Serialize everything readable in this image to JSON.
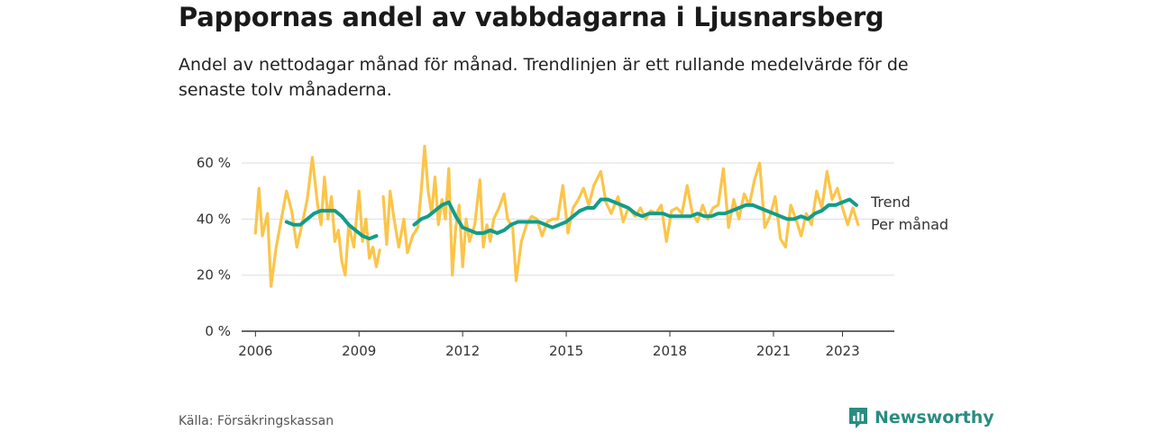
{
  "header": {
    "title": "Pappornas andel av vabbdagarna i Ljusnarsberg",
    "subtitle": "Andel av nettodagar månad för månad. Trendlinjen är ett rullande medelvärde för de senaste tolv månaderna."
  },
  "footer": {
    "source": "Källa: Försäkringskassan",
    "brand": "Newsworthy",
    "brand_icon": "bar-chart-logo-icon"
  },
  "colors": {
    "monthly": "#fbc54a",
    "trend": "#129c8a",
    "grid": "#dddddd",
    "brand": "#2a8c82"
  },
  "chart_data": {
    "type": "line",
    "y_ticks": [
      "0 %",
      "20 %",
      "40 %",
      "60 %"
    ],
    "x_ticks": [
      "2006",
      "2009",
      "2012",
      "2015",
      "2018",
      "2021",
      "2023"
    ],
    "ylim": [
      0,
      70
    ],
    "xlim": [
      2005.6,
      2024.5
    ],
    "grid": true,
    "legend": "right end of lines",
    "series": [
      {
        "name": "Trend",
        "points": [
          [
            2006.9,
            39
          ],
          [
            2007.1,
            38
          ],
          [
            2007.3,
            38
          ],
          [
            2007.5,
            40
          ],
          [
            2007.7,
            42
          ],
          [
            2007.9,
            43
          ],
          [
            2008.1,
            43
          ],
          [
            2008.3,
            43
          ],
          [
            2008.5,
            41
          ],
          [
            2008.7,
            38
          ],
          [
            2008.9,
            36
          ],
          [
            2009.1,
            34
          ],
          [
            2009.3,
            33
          ],
          [
            2009.5,
            34
          ],
          null,
          [
            2010.6,
            38
          ],
          [
            2010.8,
            40
          ],
          [
            2011.0,
            41
          ],
          [
            2011.2,
            43
          ],
          [
            2011.4,
            45
          ],
          [
            2011.6,
            46
          ],
          [
            2011.8,
            41
          ],
          [
            2012.0,
            37
          ],
          [
            2012.2,
            36
          ],
          [
            2012.4,
            35
          ],
          [
            2012.6,
            35
          ],
          [
            2012.8,
            36
          ],
          [
            2013.0,
            35
          ],
          [
            2013.2,
            36
          ],
          [
            2013.4,
            38
          ],
          [
            2013.6,
            39
          ],
          [
            2013.8,
            39
          ],
          [
            2014.0,
            39
          ],
          [
            2014.2,
            39
          ],
          [
            2014.4,
            38
          ],
          [
            2014.6,
            37
          ],
          [
            2014.8,
            38
          ],
          [
            2015.0,
            39
          ],
          [
            2015.2,
            41
          ],
          [
            2015.4,
            43
          ],
          [
            2015.6,
            44
          ],
          [
            2015.8,
            44
          ],
          [
            2016.0,
            47
          ],
          [
            2016.2,
            47
          ],
          [
            2016.4,
            46
          ],
          [
            2016.6,
            45
          ],
          [
            2016.8,
            44
          ],
          [
            2017.0,
            42
          ],
          [
            2017.2,
            41
          ],
          [
            2017.4,
            42
          ],
          [
            2017.6,
            42
          ],
          [
            2017.8,
            42
          ],
          [
            2018.0,
            41
          ],
          [
            2018.2,
            41
          ],
          [
            2018.4,
            41
          ],
          [
            2018.6,
            41
          ],
          [
            2018.8,
            42
          ],
          [
            2019.0,
            41
          ],
          [
            2019.2,
            41
          ],
          [
            2019.4,
            42
          ],
          [
            2019.6,
            42
          ],
          [
            2019.8,
            43
          ],
          [
            2020.0,
            44
          ],
          [
            2020.2,
            45
          ],
          [
            2020.4,
            45
          ],
          [
            2020.6,
            44
          ],
          [
            2020.8,
            43
          ],
          [
            2021.0,
            42
          ],
          [
            2021.2,
            41
          ],
          [
            2021.4,
            40
          ],
          [
            2021.6,
            40
          ],
          [
            2021.8,
            41
          ],
          [
            2022.0,
            40
          ],
          [
            2022.2,
            42
          ],
          [
            2022.4,
            43
          ],
          [
            2022.6,
            45
          ],
          [
            2022.8,
            45
          ],
          [
            2023.0,
            46
          ],
          [
            2023.2,
            47
          ],
          [
            2023.4,
            45
          ]
        ]
      },
      {
        "name": "Per månad",
        "points": [
          [
            2006.0,
            35
          ],
          [
            2006.1,
            51
          ],
          [
            2006.2,
            34
          ],
          [
            2006.35,
            42
          ],
          [
            2006.45,
            16
          ],
          [
            2006.6,
            30
          ],
          [
            2006.75,
            40
          ],
          [
            2006.9,
            50
          ],
          [
            2007.05,
            43
          ],
          [
            2007.2,
            30
          ],
          [
            2007.35,
            38
          ],
          [
            2007.5,
            47
          ],
          [
            2007.65,
            62
          ],
          [
            2007.8,
            45
          ],
          [
            2007.9,
            38
          ],
          [
            2008.0,
            55
          ],
          [
            2008.1,
            40
          ],
          [
            2008.2,
            48
          ],
          [
            2008.3,
            32
          ],
          [
            2008.4,
            36
          ],
          [
            2008.5,
            25
          ],
          [
            2008.6,
            20
          ],
          [
            2008.7,
            38
          ],
          [
            2008.85,
            30
          ],
          [
            2009.0,
            50
          ],
          [
            2009.1,
            32
          ],
          [
            2009.2,
            40
          ],
          [
            2009.3,
            26
          ],
          [
            2009.4,
            30
          ],
          [
            2009.5,
            23
          ],
          [
            2009.6,
            29
          ],
          null,
          [
            2009.7,
            48
          ],
          [
            2009.8,
            31
          ],
          [
            2009.9,
            50
          ],
          [
            2010.0,
            41
          ],
          [
            2010.15,
            30
          ],
          [
            2010.3,
            40
          ],
          [
            2010.4,
            28
          ],
          [
            2010.55,
            34
          ],
          [
            2010.7,
            37
          ],
          [
            2010.8,
            50
          ],
          [
            2010.9,
            66
          ],
          [
            2011.0,
            50
          ],
          [
            2011.1,
            42
          ],
          [
            2011.2,
            55
          ],
          [
            2011.3,
            38
          ],
          [
            2011.4,
            47
          ],
          [
            2011.5,
            40
          ],
          [
            2011.6,
            58
          ],
          [
            2011.7,
            20
          ],
          [
            2011.8,
            37
          ],
          [
            2011.9,
            45
          ],
          [
            2012.0,
            23
          ],
          [
            2012.1,
            40
          ],
          [
            2012.2,
            32
          ],
          [
            2012.35,
            38
          ],
          [
            2012.5,
            54
          ],
          [
            2012.6,
            30
          ],
          [
            2012.7,
            38
          ],
          [
            2012.8,
            32
          ],
          [
            2012.9,
            40
          ],
          [
            2013.05,
            44
          ],
          [
            2013.2,
            49
          ],
          [
            2013.3,
            40
          ],
          [
            2013.45,
            37
          ],
          [
            2013.55,
            18
          ],
          [
            2013.7,
            32
          ],
          [
            2013.85,
            38
          ],
          [
            2014.0,
            41
          ],
          [
            2014.15,
            40
          ],
          [
            2014.3,
            34
          ],
          [
            2014.45,
            39
          ],
          [
            2014.6,
            40
          ],
          [
            2014.75,
            40
          ],
          [
            2014.9,
            52
          ],
          [
            2015.05,
            35
          ],
          [
            2015.2,
            44
          ],
          [
            2015.35,
            47
          ],
          [
            2015.5,
            51
          ],
          [
            2015.65,
            45
          ],
          [
            2015.8,
            52
          ],
          [
            2016.0,
            57
          ],
          [
            2016.15,
            46
          ],
          [
            2016.3,
            42
          ],
          [
            2016.5,
            48
          ],
          [
            2016.65,
            39
          ],
          [
            2016.8,
            44
          ],
          [
            2017.0,
            41
          ],
          [
            2017.15,
            44
          ],
          [
            2017.3,
            40
          ],
          [
            2017.45,
            43
          ],
          [
            2017.6,
            42
          ],
          [
            2017.75,
            45
          ],
          [
            2017.9,
            32
          ],
          [
            2018.05,
            43
          ],
          [
            2018.2,
            44
          ],
          [
            2018.35,
            42
          ],
          [
            2018.5,
            52
          ],
          [
            2018.65,
            42
          ],
          [
            2018.8,
            39
          ],
          [
            2018.95,
            45
          ],
          [
            2019.1,
            40
          ],
          [
            2019.25,
            44
          ],
          [
            2019.4,
            45
          ],
          [
            2019.55,
            58
          ],
          [
            2019.7,
            37
          ],
          [
            2019.85,
            47
          ],
          [
            2020.0,
            40
          ],
          [
            2020.15,
            49
          ],
          [
            2020.3,
            45
          ],
          [
            2020.45,
            54
          ],
          [
            2020.6,
            60
          ],
          [
            2020.75,
            37
          ],
          [
            2020.9,
            41
          ],
          [
            2021.05,
            48
          ],
          [
            2021.2,
            33
          ],
          [
            2021.35,
            30
          ],
          [
            2021.5,
            45
          ],
          [
            2021.65,
            40
          ],
          [
            2021.8,
            34
          ],
          [
            2021.95,
            42
          ],
          [
            2022.1,
            38
          ],
          [
            2022.25,
            50
          ],
          [
            2022.4,
            44
          ],
          [
            2022.55,
            57
          ],
          [
            2022.7,
            47
          ],
          [
            2022.85,
            51
          ],
          [
            2023.0,
            44
          ],
          [
            2023.15,
            38
          ],
          [
            2023.3,
            44
          ],
          [
            2023.45,
            38
          ]
        ]
      }
    ],
    "labels": {
      "trend": "Trend",
      "monthly": "Per månad"
    }
  }
}
